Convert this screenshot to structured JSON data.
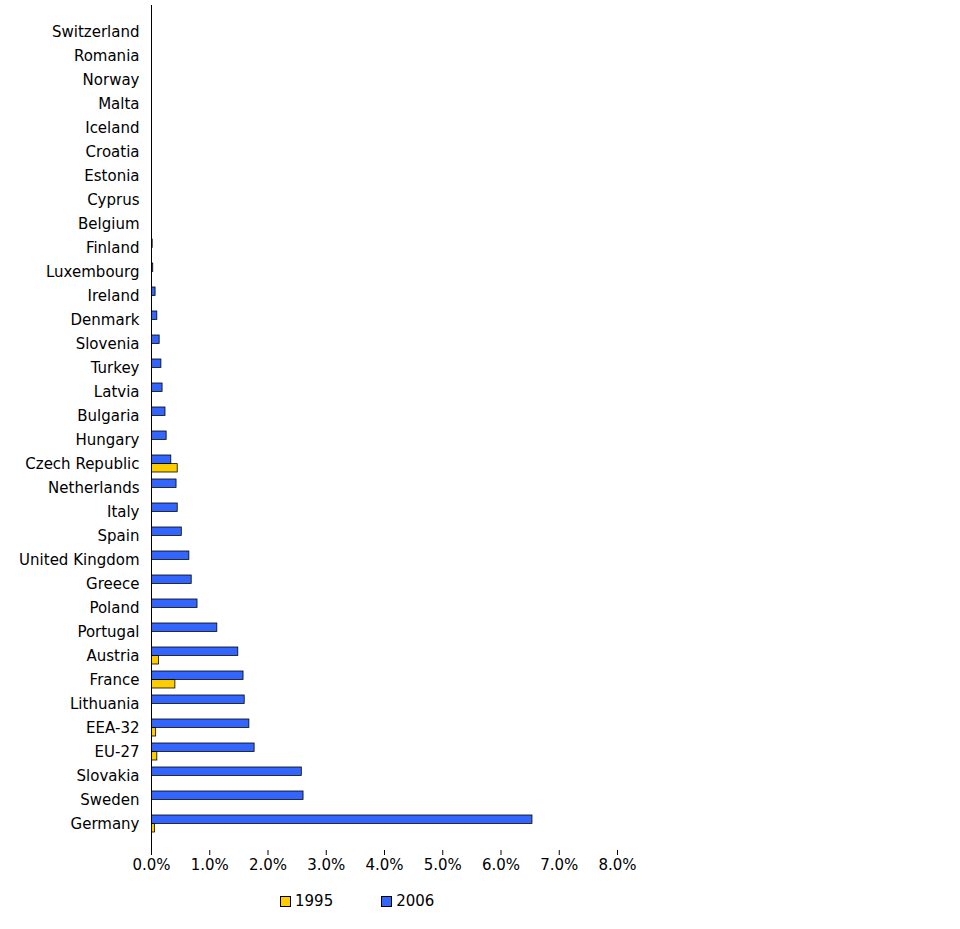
{
  "chart_data": {
    "type": "bar",
    "orientation": "horizontal",
    "categories": [
      "Switzerland",
      "Romania",
      "Norway",
      "Malta",
      "Iceland",
      "Croatia",
      "Estonia",
      "Cyprus",
      "Belgium",
      "Finland",
      "Luxembourg",
      "Ireland",
      "Denmark",
      "Slovenia",
      "Turkey",
      "Latvia",
      "Bulgaria",
      "Hungary",
      "Czech Republic",
      "Netherlands",
      "Italy",
      "Spain",
      "United Kingdom",
      "Greece",
      "Poland",
      "Portugal",
      "Austria",
      "France",
      "Lithuania",
      "EEA-32",
      "EU-27",
      "Slovakia",
      "Sweden",
      "Germany"
    ],
    "series": [
      {
        "name": "1995",
        "color": "#FFCC00",
        "values": [
          0,
          0,
          0,
          0,
          0,
          0,
          0,
          0,
          0,
          0,
          0,
          0,
          0,
          0,
          0,
          0,
          0,
          0,
          0.45,
          0,
          0,
          0,
          0,
          0,
          0,
          0,
          0.13,
          0.41,
          0,
          0.08,
          0.1,
          0,
          0,
          0.06
        ]
      },
      {
        "name": "2006",
        "color": "#3366FF",
        "values": [
          0,
          0,
          0,
          0,
          0,
          0,
          0,
          0,
          0,
          0.02,
          0.03,
          0.07,
          0.1,
          0.14,
          0.17,
          0.19,
          0.24,
          0.26,
          0.34,
          0.43,
          0.45,
          0.52,
          0.65,
          0.69,
          0.79,
          1.13,
          1.49,
          1.58,
          1.6,
          1.68,
          1.77,
          2.58,
          2.61,
          6.54
        ]
      }
    ],
    "xlim": [
      0,
      8
    ],
    "xticks": [
      {
        "value": 0,
        "label": "0.0%"
      },
      {
        "value": 1,
        "label": "1.0%"
      },
      {
        "value": 2,
        "label": "2.0%"
      },
      {
        "value": 3,
        "label": "3.0%"
      },
      {
        "value": 4,
        "label": "4.0%"
      },
      {
        "value": 5,
        "label": "5.0%"
      },
      {
        "value": 6,
        "label": "6.0%"
      },
      {
        "value": 7,
        "label": "7.0%"
      },
      {
        "value": 8,
        "label": "8.0%"
      }
    ],
    "grid": false,
    "legend": "bottom"
  }
}
